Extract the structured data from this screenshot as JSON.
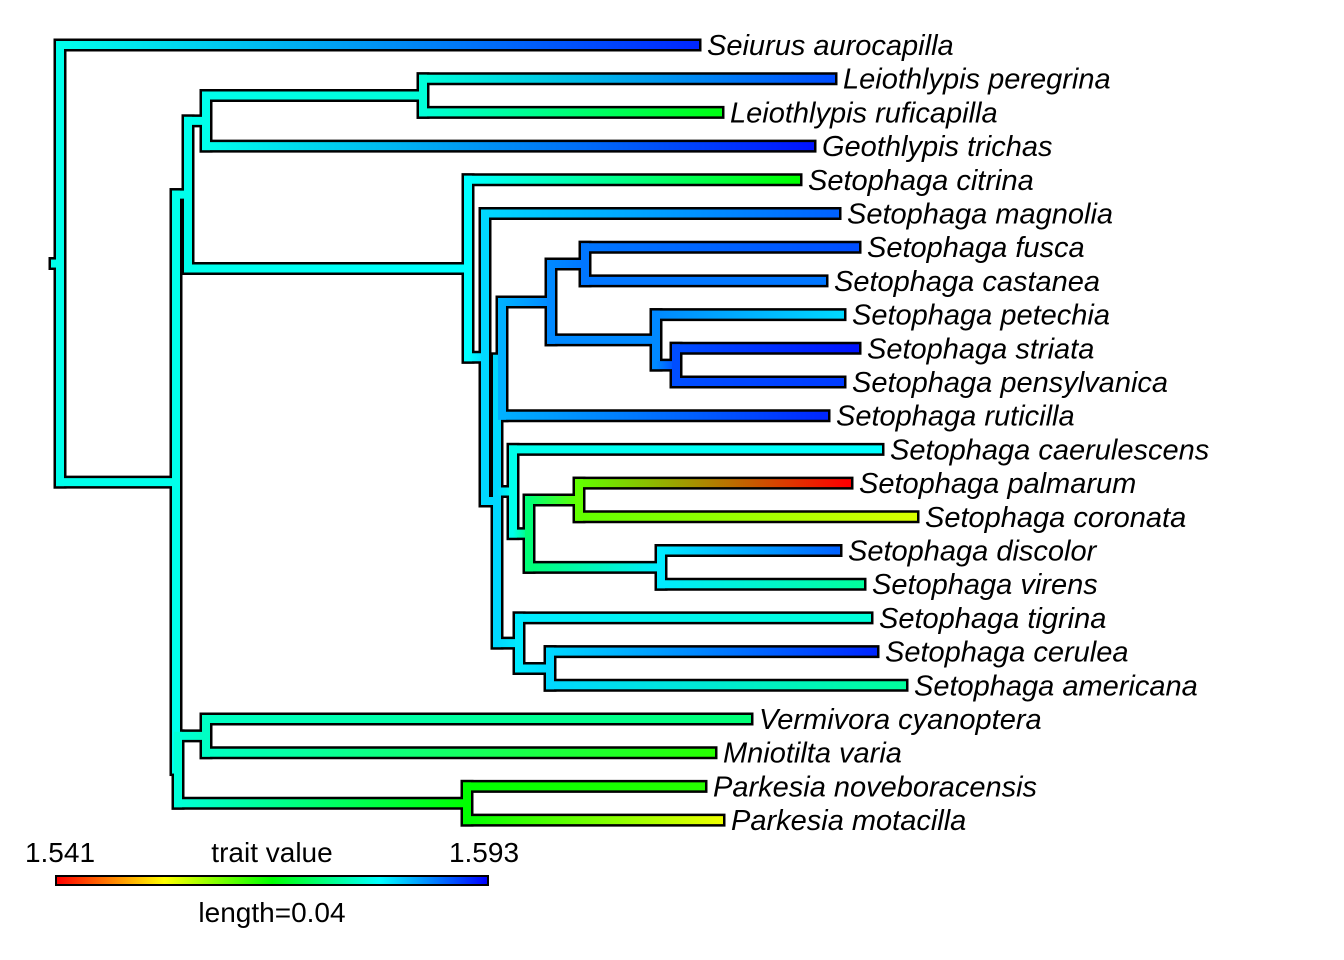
{
  "tree": {
    "tips": [
      {
        "name": "Seiurus aurocapilla",
        "value": 1.591
      },
      {
        "name": "Leiothlypis peregrina",
        "value": 1.589
      },
      {
        "name": "Leiothlypis ruficapilla",
        "value": 1.568
      },
      {
        "name": "Geothlypis trichas",
        "value": 1.592
      },
      {
        "name": "Setophaga citrina",
        "value": 1.567
      },
      {
        "name": "Setophaga magnolia",
        "value": 1.588
      },
      {
        "name": "Setophaga fusca",
        "value": 1.589
      },
      {
        "name": "Setophaga castanea",
        "value": 1.587
      },
      {
        "name": "Setophaga petechia",
        "value": 1.582
      },
      {
        "name": "Setophaga striata",
        "value": 1.592
      },
      {
        "name": "Setophaga pensylvanica",
        "value": 1.59
      },
      {
        "name": "Setophaga ruticilla",
        "value": 1.591
      },
      {
        "name": "Setophaga caerulescens",
        "value": 1.58
      },
      {
        "name": "Setophaga palmarum",
        "value": 1.541
      },
      {
        "name": "Setophaga coronata",
        "value": 1.556
      },
      {
        "name": "Setophaga discolor",
        "value": 1.588
      },
      {
        "name": "Setophaga virens",
        "value": 1.575
      },
      {
        "name": "Setophaga tigrina",
        "value": 1.578
      },
      {
        "name": "Setophaga cerulea",
        "value": 1.591
      },
      {
        "name": "Setophaga americana",
        "value": 1.575
      },
      {
        "name": "Vermivora cyanoptera",
        "value": 1.573
      },
      {
        "name": "Mniotilta varia",
        "value": 1.565
      },
      {
        "name": "Parkesia noveboracensis",
        "value": 1.565
      },
      {
        "name": "Parkesia motacilla",
        "value": 1.555
      }
    ]
  },
  "legend": {
    "min_label": "1.541",
    "title": "trait value",
    "max_label": "1.593",
    "length_label": "length=0.04",
    "colors": [
      "#ff0000",
      "#ffff00",
      "#00ff00",
      "#00ffff",
      "#0000ff"
    ]
  }
}
